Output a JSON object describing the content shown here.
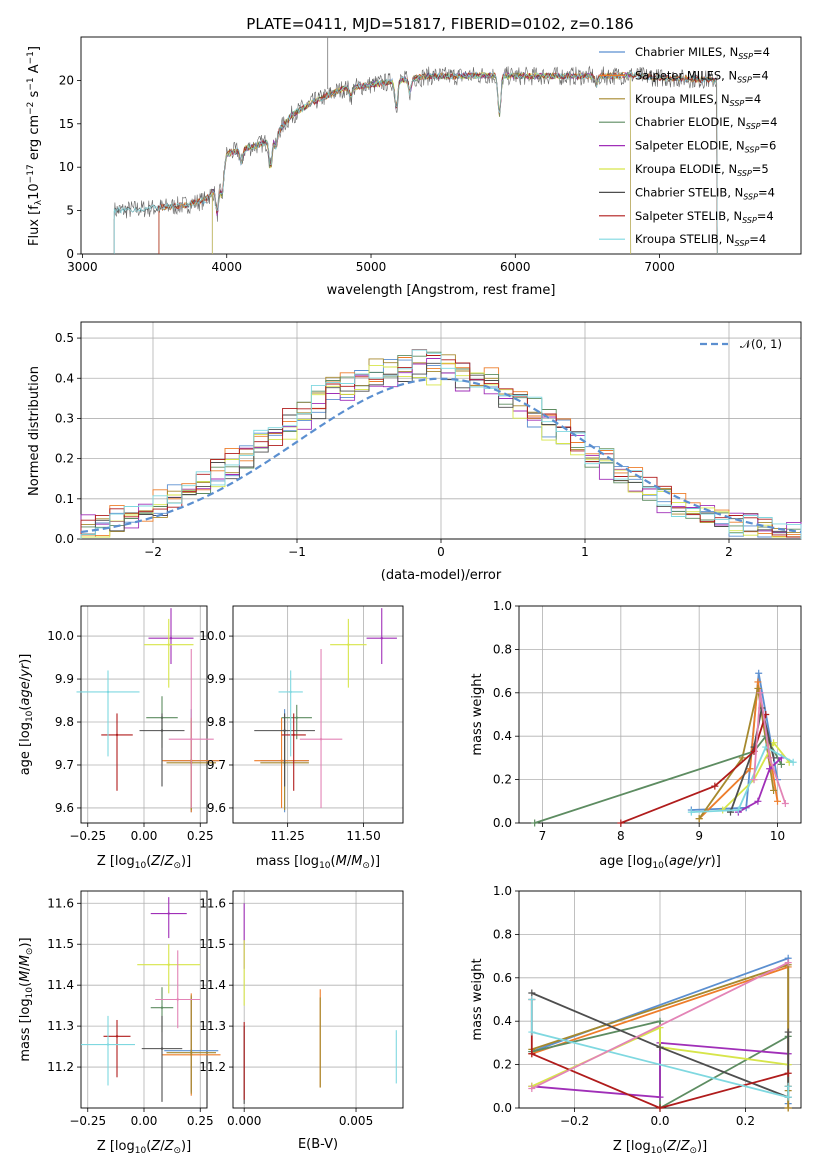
{
  "figure_title": "PLATE=0411, MJD=51817, FIBERID=0102, z=0.186",
  "colors": {
    "Chabrier MILES": "#5b8fd0",
    "Salpeter MILES": "#ee7d2a",
    "Kroupa MILES": "#a6892e",
    "Chabrier ELODIE": "#5d8c61",
    "Salpeter ELODIE": "#a02fb8",
    "Kroupa ELODIE": "#d7e54a",
    "Chabrier STELIB": "#4e4e4e",
    "Salpeter STELIB": "#b01c1c",
    "Kroupa STELIB": "#7fd8e0",
    "data": "#666666",
    "normal": "#5b8fd0"
  },
  "chart_data": [
    {
      "id": "spectrum",
      "type": "line",
      "title": "PLATE=0411, MJD=51817, FIBERID=0102, z=0.186",
      "xlabel": "wavelength [Angstrom, rest frame]",
      "ylabel": "Flux [fλ10⁻¹⁷ erg cm⁻² s⁻¹ A⁻¹]",
      "xlim": [
        2990,
        7980
      ],
      "ylim": [
        0,
        25
      ],
      "xticks": [
        "3000",
        "4000",
        "5000",
        "6000",
        "7000"
      ],
      "yticks": [
        "0",
        "5",
        "10",
        "15",
        "20"
      ],
      "legend_position": "lower-right",
      "legend": [
        "Chabrier MILES, N_SSP=4",
        "Salpeter MILES, N_SSP=4",
        "Kroupa MILES, N_SSP=4",
        "Chabrier ELODIE, N_SSP=4",
        "Salpeter ELODIE, N_SSP=6",
        "Kroupa ELODIE, N_SSP=5",
        "Chabrier STELIB, N_SSP=4",
        "Salpeter STELIB, N_SSP=4",
        "Kroupa STELIB, N_SSP=4"
      ],
      "legend_labels": [
        {
          "name": "Chabrier MILES, N",
          "sub": "SSP",
          "rest": "=4"
        },
        {
          "name": "Salpeter MILES, N",
          "sub": "SSP",
          "rest": "=4"
        },
        {
          "name": "Kroupa MILES, N",
          "sub": "SSP",
          "rest": "=4"
        },
        {
          "name": "Chabrier ELODIE, N",
          "sub": "SSP",
          "rest": "=4"
        },
        {
          "name": "Salpeter ELODIE, N",
          "sub": "SSP",
          "rest": "=6"
        },
        {
          "name": "Kroupa ELODIE, N",
          "sub": "SSP",
          "rest": "=5"
        },
        {
          "name": "Chabrier STELIB, N",
          "sub": "SSP",
          "rest": "=4"
        },
        {
          "name": "Salpeter STELIB, N",
          "sub": "SSP",
          "rest": "=4"
        },
        {
          "name": "Kroupa STELIB, N",
          "sub": "SSP",
          "rest": "=4"
        }
      ],
      "continuum": {
        "x": [
          3220,
          3500,
          3700,
          3850,
          3950,
          4000,
          4200,
          4300,
          4450,
          4600,
          4800,
          5000,
          5200,
          5400,
          5600,
          5800,
          6000,
          6200,
          6400,
          6600,
          6800,
          7000,
          7200,
          7400
        ],
        "y": [
          5.0,
          5.3,
          5.6,
          6.2,
          8.0,
          11.5,
          12.5,
          13.0,
          16.0,
          17.5,
          19.0,
          19.5,
          20.0,
          20.5,
          20.5,
          20.6,
          20.5,
          20.5,
          20.5,
          20.5,
          20.6,
          20.3,
          20.2,
          20.0
        ]
      },
      "absorption_lines": [
        {
          "x": 3934,
          "depth": 3.0
        },
        {
          "x": 3969,
          "depth": 2.5
        },
        {
          "x": 4102,
          "depth": 1.5
        },
        {
          "x": 4304,
          "depth": 3.0
        },
        {
          "x": 4341,
          "depth": 1.5
        },
        {
          "x": 4861,
          "depth": 1.0
        },
        {
          "x": 5175,
          "depth": 3.0
        },
        {
          "x": 5270,
          "depth": 1.5
        },
        {
          "x": 5890,
          "depth": 4.5
        },
        {
          "x": 6563,
          "depth": 1.0
        }
      ],
      "data_start": 3220,
      "data_end": 7400,
      "model_ranges": [
        [
          3530,
          7400
        ],
        [
          3530,
          7400
        ],
        [
          3530,
          7400
        ],
        [
          3900,
          6800
        ],
        [
          3900,
          6800
        ],
        [
          3900,
          6800
        ],
        [
          3220,
          7400
        ],
        [
          3530,
          7400
        ],
        [
          3220,
          7400
        ]
      ]
    },
    {
      "id": "residuals",
      "type": "bar",
      "xlabel": "(data-model)/error",
      "ylabel": "Normed distribution",
      "xlim": [
        -2.5,
        2.5
      ],
      "ylim": [
        0,
        0.54
      ],
      "xticks": [
        "−2",
        "−1",
        "0",
        "1",
        "2"
      ],
      "yticks": [
        "0.0",
        "0.1",
        "0.2",
        "0.3",
        "0.4",
        "0.5"
      ],
      "grid": true,
      "legend": [
        "N(0,1)"
      ],
      "legend_position": "top-right",
      "bin_edges": [
        -2.5,
        2.5
      ],
      "bins": 50
    },
    {
      "id": "age-vs-Z",
      "type": "scatter",
      "xlabel": "Z [log10(Z/Z⊙)]",
      "ylabel": "age [log10(age/yr)]",
      "xlim": [
        -0.28,
        0.28
      ],
      "ylim": [
        9.565,
        10.07
      ],
      "xticks": [
        "−0.25",
        "0.00",
        "0.25"
      ],
      "yticks": [
        "9.6",
        "9.7",
        "9.8",
        "9.9",
        "10.0"
      ],
      "grid": true,
      "points": [
        {
          "series": "Chabrier MILES",
          "x": 0.21,
          "y": 9.71,
          "xerr": 0.12,
          "yerr": [
            0.12,
            0.12
          ]
        },
        {
          "series": "Salpeter MILES",
          "x": 0.21,
          "y": 9.71,
          "xerr": 0.13,
          "yerr": [
            0.12,
            0.1
          ]
        },
        {
          "series": "Kroupa MILES",
          "x": 0.21,
          "y": 9.705,
          "xerr": 0.11,
          "yerr": [
            0.11,
            0.1
          ]
        },
        {
          "series": "Chabrier ELODIE",
          "x": 0.08,
          "y": 9.81,
          "xerr": 0.07,
          "yerr": [
            0.07,
            0.05
          ]
        },
        {
          "series": "Salpeter ELODIE",
          "x": 0.12,
          "y": 9.995,
          "xerr": 0.1,
          "yerr": [
            0.06,
            0.07
          ]
        },
        {
          "series": "Kroupa ELODIE",
          "x": 0.11,
          "y": 9.98,
          "xerr": 0.11,
          "yerr": [
            0.1,
            0.06
          ]
        },
        {
          "series": "Chabrier STELIB",
          "x": 0.08,
          "y": 9.78,
          "xerr": 0.1,
          "yerr": [
            0.13,
            0.04
          ]
        },
        {
          "series": "Salpeter STELIB",
          "x": -0.12,
          "y": 9.77,
          "xerr": 0.07,
          "yerr": [
            0.13,
            0.05
          ]
        },
        {
          "series": "Kroupa STELIB",
          "x": -0.16,
          "y": 9.87,
          "xerr": 0.14,
          "yerr": [
            0.15,
            0.05
          ]
        },
        {
          "series": "Salpeter ELODIE (pink)",
          "x": 0.21,
          "y": 9.76,
          "xerr": 0.1,
          "yerr": [
            0.16,
            0.21
          ],
          "color": "#e384b6"
        }
      ]
    },
    {
      "id": "age-vs-mass",
      "type": "scatter",
      "xlabel": "mass [log10(M/M⊙)]",
      "xlim": [
        11.07,
        11.63
      ],
      "ylim": [
        9.565,
        10.07
      ],
      "xticks": [
        "11.25",
        "11.50"
      ],
      "yticks": [
        "9.6",
        "9.7",
        "9.8",
        "9.9",
        "10.0"
      ],
      "grid": true,
      "points": [
        {
          "series": "Chabrier MILES",
          "x": 11.24,
          "y": 9.71,
          "xerr": 0.08,
          "yerr": [
            0.12,
            0.12
          ]
        },
        {
          "series": "Salpeter MILES",
          "x": 11.23,
          "y": 9.71,
          "xerr": 0.09,
          "yerr": [
            0.11,
            0.1
          ]
        },
        {
          "series": "Kroupa MILES",
          "x": 11.24,
          "y": 9.705,
          "xerr": 0.08,
          "yerr": [
            0.11,
            0.1
          ]
        },
        {
          "series": "Chabrier ELODIE",
          "x": 11.28,
          "y": 9.81,
          "xerr": 0.05,
          "yerr": [
            0.05,
            0.03
          ]
        },
        {
          "series": "Salpeter ELODIE",
          "x": 11.56,
          "y": 9.995,
          "xerr": 0.05,
          "yerr": [
            0.06,
            0.07
          ]
        },
        {
          "series": "Kroupa ELODIE",
          "x": 11.45,
          "y": 9.98,
          "xerr": 0.06,
          "yerr": [
            0.1,
            0.06
          ]
        },
        {
          "series": "Chabrier STELIB",
          "x": 11.24,
          "y": 9.78,
          "xerr": 0.1,
          "yerr": [
            0.13,
            0.04
          ]
        },
        {
          "series": "Salpeter STELIB",
          "x": 11.27,
          "y": 9.77,
          "xerr": 0.04,
          "yerr": [
            0.13,
            0.05
          ]
        },
        {
          "series": "Kroupa STELIB",
          "x": 11.26,
          "y": 9.87,
          "xerr": 0.04,
          "yerr": [
            0.15,
            0.05
          ]
        },
        {
          "series": "Salpeter ELODIE (pink)",
          "x": 11.36,
          "y": 9.76,
          "xerr": 0.07,
          "yerr": [
            0.16,
            0.21
          ],
          "color": "#e384b6"
        }
      ]
    },
    {
      "id": "weight-vs-age",
      "type": "line",
      "xlabel": "age [log10(age/yr)]",
      "ylabel": "mass weight",
      "xlim": [
        6.7,
        10.3
      ],
      "ylim": [
        0,
        1
      ],
      "xticks": [
        "7",
        "8",
        "9",
        "10"
      ],
      "yticks": [
        "0.0",
        "0.2",
        "0.4",
        "0.6",
        "0.8",
        "1.0"
      ],
      "grid": true,
      "series": [
        {
          "name": "Chabrier MILES",
          "x": [
            8.9,
            9.6,
            9.76,
            10.0
          ],
          "y": [
            0.06,
            0.07,
            0.69,
            0.2
          ]
        },
        {
          "name": "Salpeter MILES",
          "x": [
            9.0,
            9.65,
            9.75,
            10.0
          ],
          "y": [
            0.02,
            0.25,
            0.65,
            0.1
          ]
        },
        {
          "name": "Kroupa MILES",
          "x": [
            9.0,
            9.55,
            9.75,
            9.95
          ],
          "y": [
            0.02,
            0.3,
            0.62,
            0.15
          ]
        },
        {
          "name": "Chabrier ELODIE",
          "x": [
            6.9,
            9.7,
            9.85,
            10.05
          ],
          "y": [
            0.0,
            0.33,
            0.4,
            0.27
          ]
        },
        {
          "name": "Salpeter ELODIE",
          "x": [
            9.5,
            9.75,
            9.9,
            10.05
          ],
          "y": [
            0.05,
            0.1,
            0.25,
            0.3
          ]
        },
        {
          "name": "Kroupa ELODIE",
          "x": [
            9.3,
            9.7,
            9.95,
            10.15
          ],
          "y": [
            0.06,
            0.2,
            0.37,
            0.28
          ]
        },
        {
          "name": "Chabrier STELIB",
          "x": [
            9.4,
            9.7,
            9.8,
            9.95
          ],
          "y": [
            0.05,
            0.35,
            0.53,
            0.3
          ]
        },
        {
          "name": "Salpeter STELIB",
          "x": [
            8.0,
            9.2,
            9.7,
            9.85
          ],
          "y": [
            0.0,
            0.17,
            0.33,
            0.5
          ]
        },
        {
          "name": "Kroupa STELIB",
          "x": [
            8.9,
            9.5,
            9.85,
            10.2
          ],
          "y": [
            0.05,
            0.06,
            0.35,
            0.28
          ]
        },
        {
          "name": "Salpeter ELODIE (pink)",
          "x": [
            9.7,
            9.78,
            9.9,
            10.1
          ],
          "y": [
            0.2,
            0.6,
            0.3,
            0.09
          ],
          "color": "#e384b6"
        }
      ]
    },
    {
      "id": "mass-vs-Z",
      "type": "scatter",
      "xlabel": "Z [log10(Z/Z⊙)]",
      "ylabel": "mass [log10(M/M⊙)]",
      "xlim": [
        -0.28,
        0.28
      ],
      "ylim": [
        11.1,
        11.63
      ],
      "xticks": [
        "−0.25",
        "0.00",
        "0.25"
      ],
      "yticks": [
        "11.2",
        "11.3",
        "11.4",
        "11.5",
        "11.6"
      ],
      "grid": true,
      "points": [
        {
          "series": "Chabrier MILES",
          "x": 0.21,
          "y": 11.24,
          "xerr": 0.12,
          "yerr": [
            0.1,
            0.13
          ]
        },
        {
          "series": "Salpeter MILES",
          "x": 0.21,
          "y": 11.23,
          "xerr": 0.13,
          "yerr": [
            0.1,
            0.15
          ]
        },
        {
          "series": "Kroupa MILES",
          "x": 0.21,
          "y": 11.235,
          "xerr": 0.11,
          "yerr": [
            0.1,
            0.14
          ]
        },
        {
          "series": "Chabrier ELODIE",
          "x": 0.08,
          "y": 11.345,
          "xerr": 0.05,
          "yerr": [
            0.06,
            0.05
          ]
        },
        {
          "series": "Salpeter ELODIE",
          "x": 0.11,
          "y": 11.575,
          "xerr": 0.08,
          "yerr": [
            0.06,
            0.04
          ]
        },
        {
          "series": "Kroupa ELODIE",
          "x": 0.11,
          "y": 11.45,
          "xerr": 0.14,
          "yerr": [
            0.07,
            0.05
          ]
        },
        {
          "series": "Chabrier STELIB",
          "x": 0.08,
          "y": 11.245,
          "xerr": 0.09,
          "yerr": [
            0.13,
            0.08
          ]
        },
        {
          "series": "Salpeter STELIB",
          "x": -0.12,
          "y": 11.275,
          "xerr": 0.06,
          "yerr": [
            0.1,
            0.04
          ]
        },
        {
          "series": "Kroupa STELIB",
          "x": -0.16,
          "y": 11.255,
          "xerr": 0.12,
          "yerr": [
            0.1,
            0.07
          ]
        },
        {
          "series": "Salpeter ELODIE (pink)",
          "x": 0.15,
          "y": 11.365,
          "xerr": 0.1,
          "yerr": [
            0.07,
            0.12
          ],
          "color": "#e384b6"
        }
      ]
    },
    {
      "id": "EBV",
      "type": "scatter",
      "xlabel": "E(B-V)",
      "xlim": [
        -0.0005,
        0.0071
      ],
      "ylim": [
        11.1,
        11.63
      ],
      "xticks": [
        "0.000",
        "0.005"
      ],
      "yticks": [
        "11.2",
        "11.3",
        "11.4",
        "11.5",
        "11.6"
      ],
      "grid": true,
      "points": [
        {
          "series": "Chabrier STELIB",
          "x": 0.0,
          "y": 11.2,
          "yerr": [
            0.09,
            0.1
          ]
        },
        {
          "series": "Salpeter STELIB",
          "x": 0.0,
          "y": 11.22,
          "yerr": [
            0.1,
            0.09
          ]
        },
        {
          "series": "Salpeter ELODIE",
          "x": 0.0,
          "y": 11.5,
          "yerr": [
            0.06,
            0.1
          ]
        },
        {
          "series": "Kroupa ELODIE",
          "x": 0.0,
          "y": 11.42,
          "yerr": [
            0.07,
            0.09
          ]
        },
        {
          "series": "Salpeter MILES",
          "x": 0.0034,
          "y": 11.27,
          "yerr": [
            0.12,
            0.12
          ]
        },
        {
          "series": "Kroupa MILES",
          "x": 0.0034,
          "y": 11.25,
          "yerr": [
            0.1,
            0.12
          ]
        },
        {
          "series": "Kroupa STELIB",
          "x": 0.0068,
          "y": 11.22,
          "yerr": [
            0.06,
            0.07
          ]
        }
      ]
    },
    {
      "id": "weight-vs-Z",
      "type": "line",
      "xlabel": "Z [log10(Z/Z⊙)]",
      "ylabel": "mass weight",
      "xlim": [
        -0.33,
        0.33
      ],
      "ylim": [
        0,
        1
      ],
      "xticks": [
        "−0.2",
        "0.0",
        "0.2"
      ],
      "yticks": [
        "0.0",
        "0.2",
        "0.4",
        "0.6",
        "0.8",
        "1.0"
      ],
      "grid": true,
      "series": [
        {
          "name": "Chabrier MILES",
          "x": [
            -0.3,
            0.3,
            0.3,
            0.3
          ],
          "y": [
            0.26,
            0.69,
            0.1,
            0.02
          ]
        },
        {
          "name": "Salpeter MILES",
          "x": [
            -0.3,
            0.3,
            0.3,
            0.3
          ],
          "y": [
            0.25,
            0.65,
            0.1,
            0.0
          ]
        },
        {
          "name": "Kroupa MILES",
          "x": [
            -0.3,
            0.3,
            0.3,
            0.3
          ],
          "y": [
            0.27,
            0.66,
            0.08,
            0.0
          ]
        },
        {
          "name": "Chabrier ELODIE",
          "x": [
            -0.3,
            0.0,
            0.0,
            0.3
          ],
          "y": [
            0.26,
            0.4,
            0.0,
            0.33
          ]
        },
        {
          "name": "Salpeter ELODIE",
          "x": [
            -0.3,
            0.0,
            0.0,
            0.3
          ],
          "y": [
            0.1,
            0.05,
            0.3,
            0.25
          ]
        },
        {
          "name": "Kroupa ELODIE",
          "x": [
            -0.3,
            0.0,
            0.0,
            0.3
          ],
          "y": [
            0.1,
            0.37,
            0.28,
            0.2
          ]
        },
        {
          "name": "Chabrier STELIB",
          "x": [
            -0.3,
            0.0,
            0.3,
            0.3
          ],
          "y": [
            0.53,
            0.28,
            0.05,
            0.35
          ]
        },
        {
          "name": "Salpeter STELIB",
          "x": [
            -0.3,
            -0.3,
            0.0,
            0.3
          ],
          "y": [
            0.5,
            0.25,
            0.0,
            0.16
          ]
        },
        {
          "name": "Kroupa STELIB",
          "x": [
            -0.3,
            -0.3,
            0.3,
            0.3
          ],
          "y": [
            0.5,
            0.35,
            0.05,
            0.1
          ]
        },
        {
          "name": "Salpeter ELODIE (pink)",
          "x": [
            -0.3,
            0.3
          ],
          "y": [
            0.09,
            0.67
          ],
          "color": "#e384b6"
        }
      ]
    }
  ]
}
